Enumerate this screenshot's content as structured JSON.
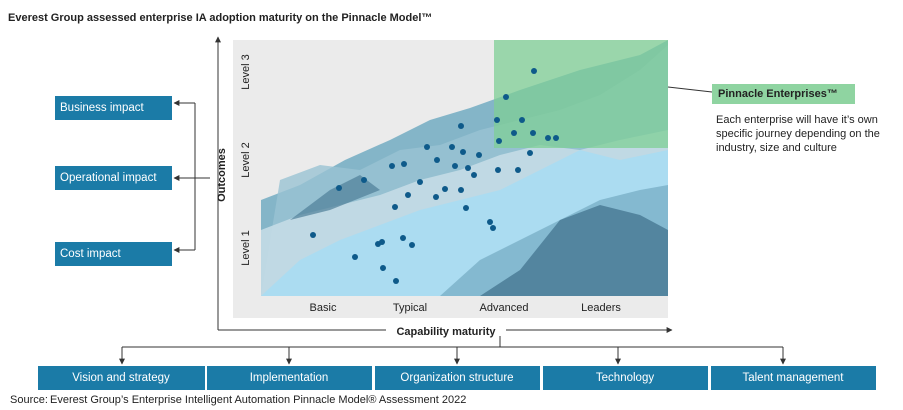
{
  "title": "Everest Group assessed enterprise IA adoption maturity on the Pinnacle Model™",
  "y_axis": {
    "label": "Outcomes",
    "levels": [
      "Level 3",
      "Level 2",
      "Level 1"
    ]
  },
  "x_axis": {
    "label": "Capability maturity",
    "stages": [
      "Basic",
      "Typical",
      "Advanced",
      "Leaders"
    ]
  },
  "impacts": [
    "Business impact",
    "Operational impact",
    "Cost impact"
  ],
  "pinnacle": {
    "label": "Pinnacle Enterprises™",
    "description": [
      "Each enterprise will have it’s own",
      "specific journey depending on the",
      "industry, size and culture"
    ]
  },
  "dimensions": [
    "Vision and strategy",
    "Implementation",
    "Organization structure",
    "Technology",
    "Talent management"
  ],
  "source": {
    "label": "Source:",
    "text": "Everest Group’s Enterprise Intelligent Automation Pinnacle Model® Assessment 2022"
  }
}
